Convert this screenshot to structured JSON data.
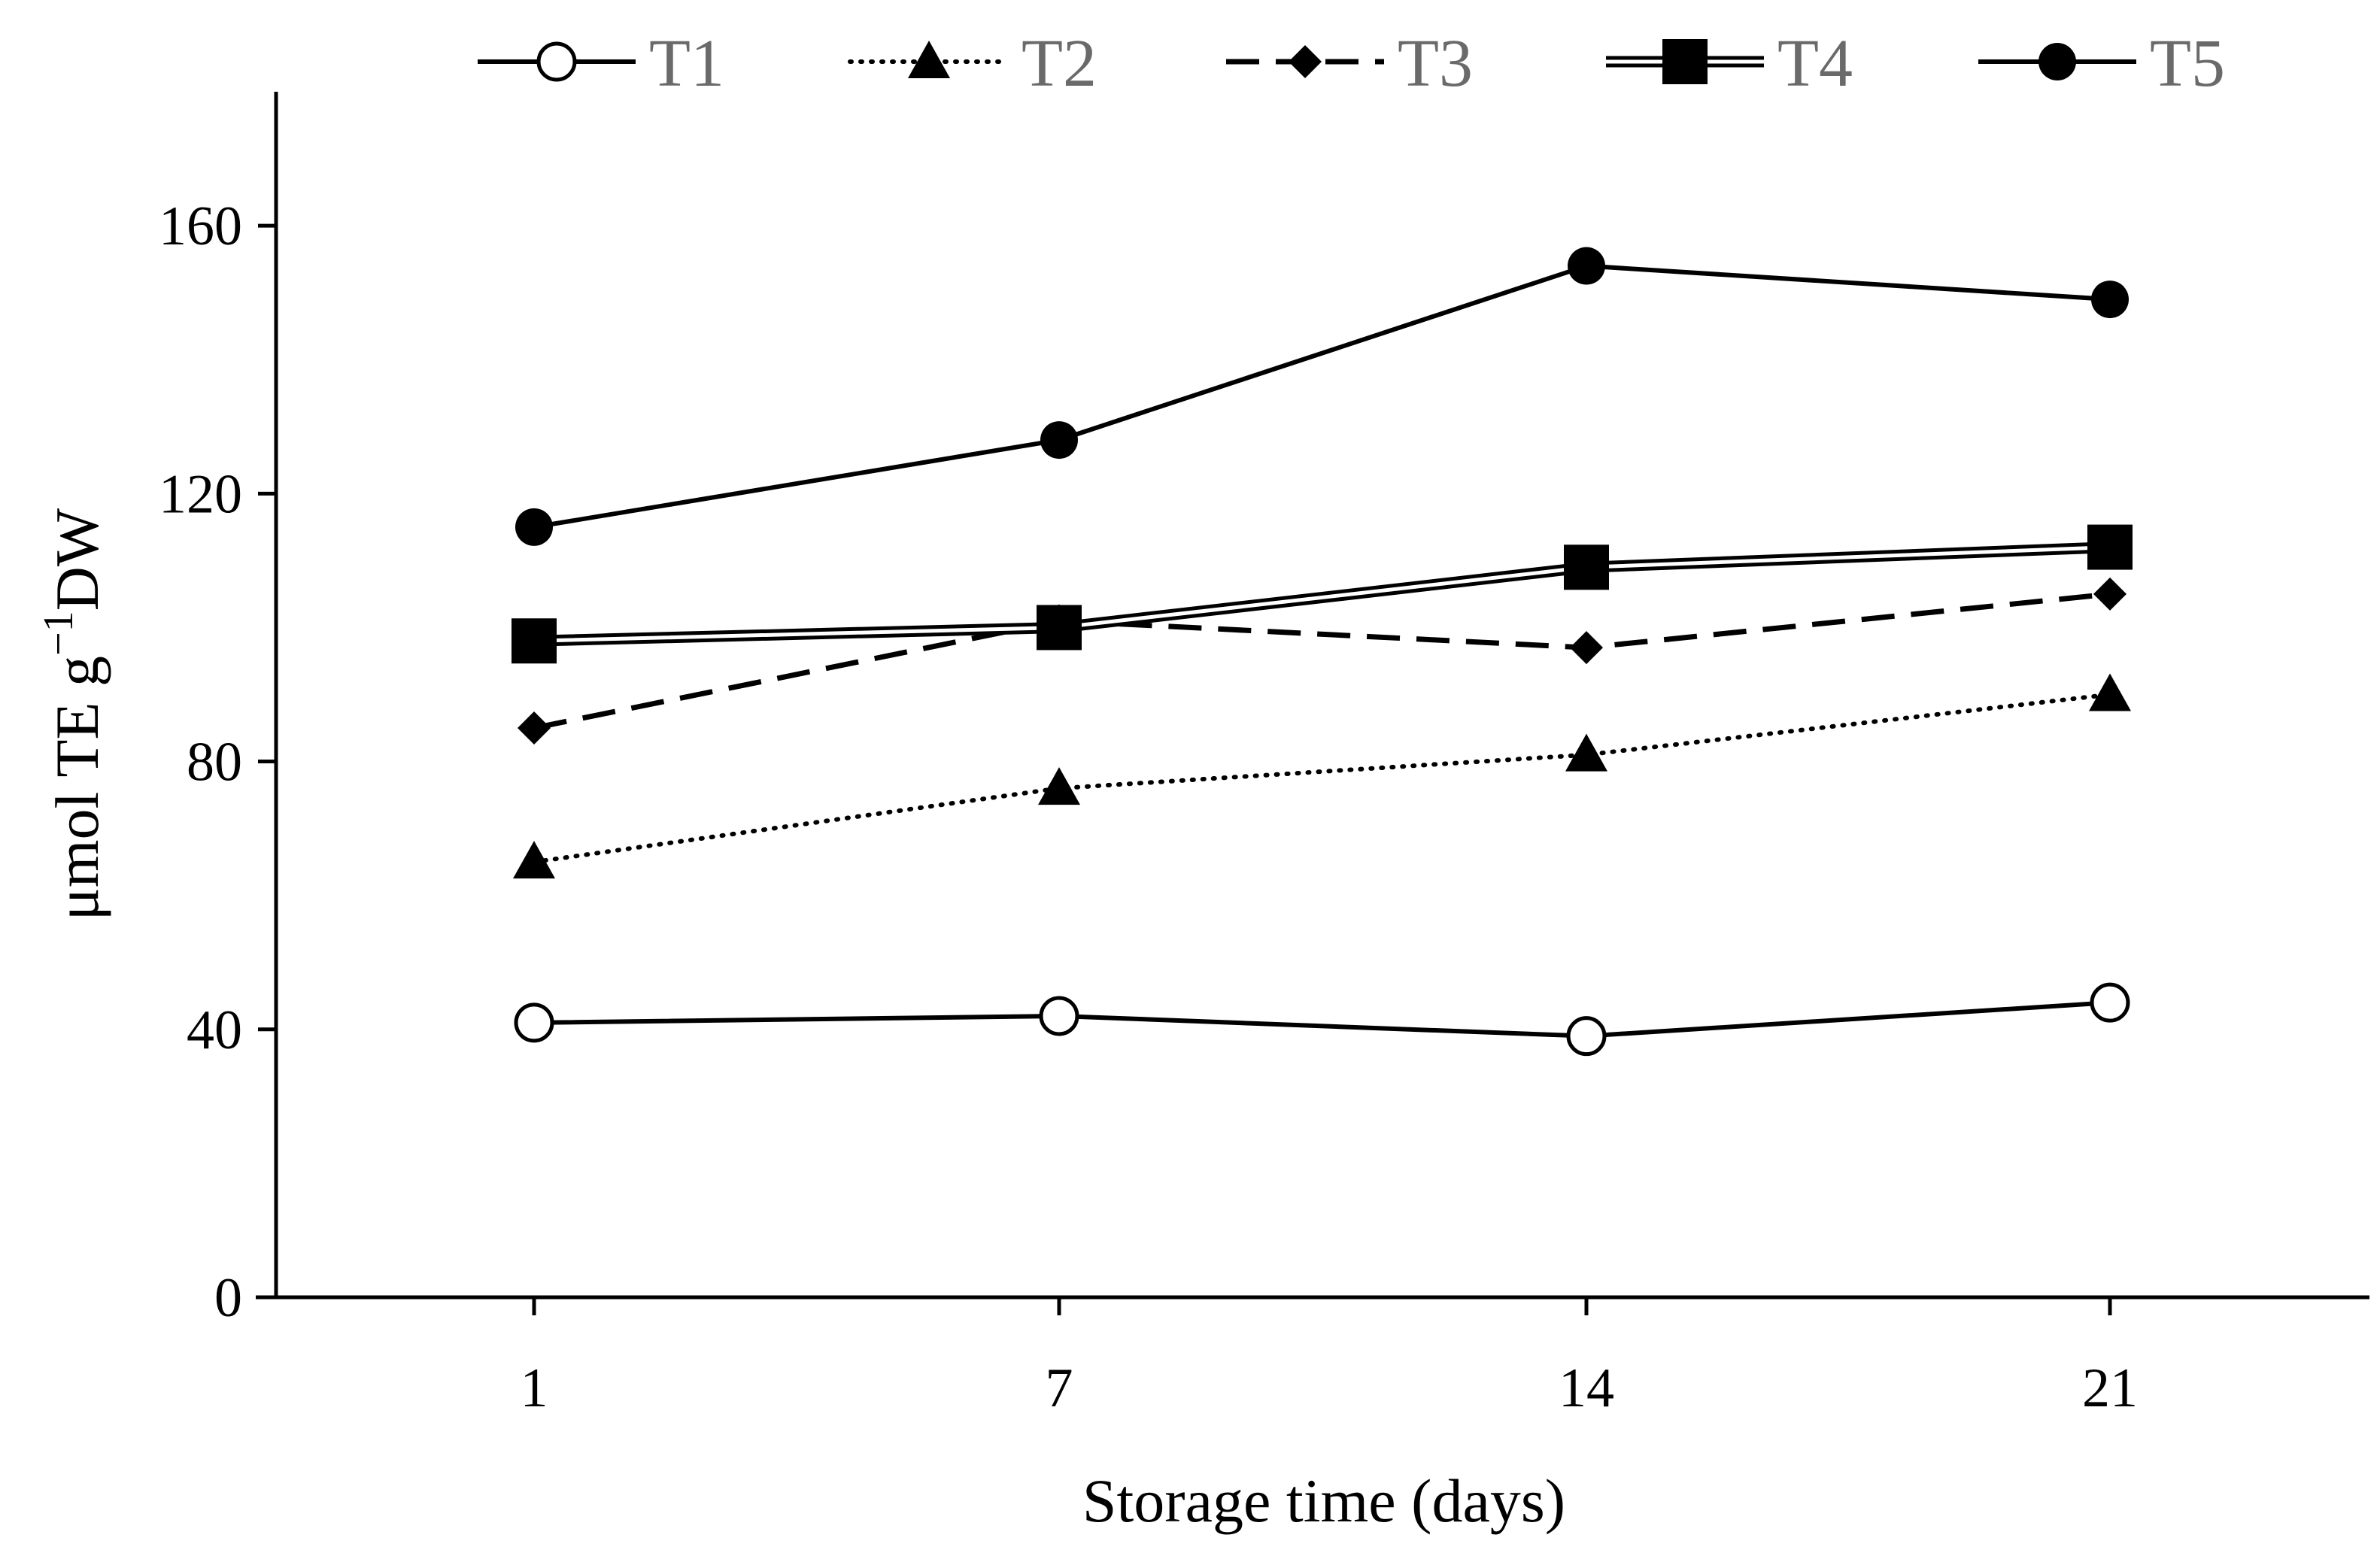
{
  "chart_data": {
    "type": "line",
    "title": "",
    "xlabel": "Storage time (days)",
    "ylabel_parts": [
      "μmol TE g",
      "−1",
      "DW"
    ],
    "x": [
      1,
      7,
      14,
      21
    ],
    "ylim": [
      0,
      180
    ],
    "yticks": [
      0,
      40,
      80,
      120,
      160
    ],
    "grid": false,
    "legend_position": "top",
    "series": [
      {
        "name": "T1",
        "values": [
          41,
          42,
          39,
          44
        ],
        "marker": "circle-open",
        "line": "solid",
        "color": "#000000"
      },
      {
        "name": "T2",
        "values": [
          65,
          76,
          81,
          90
        ],
        "marker": "triangle",
        "line": "dotted",
        "color": "#000000"
      },
      {
        "name": "T3",
        "values": [
          85,
          101,
          97,
          105
        ],
        "marker": "diamond",
        "line": "dashed",
        "color": "#000000"
      },
      {
        "name": "T4",
        "values": [
          98,
          100,
          109,
          112
        ],
        "marker": "square",
        "line": "double",
        "color": "#000000"
      },
      {
        "name": "T5",
        "values": [
          115,
          128,
          154,
          149
        ],
        "marker": "circle",
        "line": "solid",
        "color": "#000000"
      }
    ]
  }
}
